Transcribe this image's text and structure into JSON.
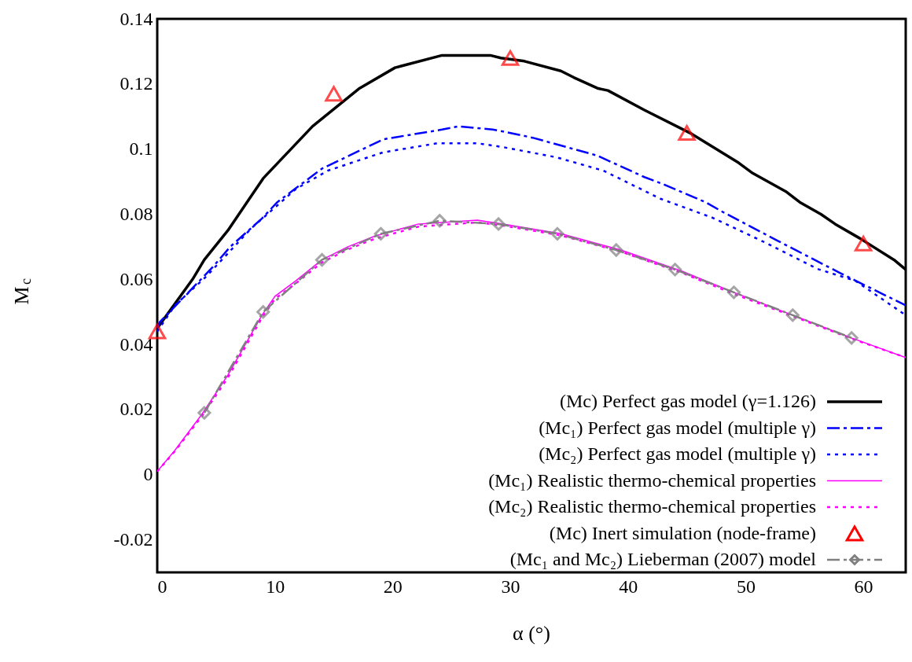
{
  "chart_data": {
    "type": "line",
    "xlabel": "α (°)",
    "ylabel": "M$_{c}$",
    "xlim": [
      0,
      63.6
    ],
    "ylim": [
      -0.03,
      0.14
    ],
    "xticks": [
      0,
      10,
      20,
      30,
      40,
      50,
      60
    ],
    "yticks": [
      -0.02,
      0,
      0.02,
      0.04,
      0.06,
      0.08,
      0.1,
      0.12,
      0.14
    ],
    "grid": false,
    "legend": "bottom right",
    "series": [
      {
        "name": "(Mc) Perfect gas model (γ=1.126)",
        "color": "#000000",
        "line_style": "solid",
        "marker": "none",
        "x": [
          0,
          3,
          4,
          6,
          9,
          13.2,
          17.2,
          20.2,
          24.2,
          28.3,
          29.2,
          31.2,
          34.3,
          35.4,
          37.4,
          38.3,
          41.4,
          45.4,
          49.4,
          50.6,
          53.4,
          54.6,
          56.4,
          57.6,
          59.7,
          62.6,
          63.6
        ],
        "values": [
          0.045,
          0.06,
          0.066,
          0.075,
          0.091,
          0.107,
          0.1187,
          0.125,
          0.1288,
          0.1288,
          0.128,
          0.127,
          0.124,
          0.122,
          0.1187,
          0.118,
          0.112,
          0.1047,
          0.0958,
          0.0926,
          0.087,
          0.0837,
          0.08,
          0.077,
          0.0726,
          0.066,
          0.063
        ]
      },
      {
        "name": "(Mc₁) Perfect gas model (multiple γ)",
        "color": "#0000ff",
        "line_style": "dashed",
        "marker": "none",
        "x": [
          0,
          0.2,
          4.7,
          6.2,
          8.9,
          10.2,
          14,
          19.2,
          24.2,
          25.6,
          28.5,
          29.4,
          31.9,
          37.4,
          41.4,
          42.8,
          46.6,
          47.9,
          52.8,
          58.1,
          63.6
        ],
        "values": [
          0.045,
          0.0468,
          0.0637,
          0.07,
          0.0787,
          0.0837,
          0.094,
          0.103,
          0.106,
          0.107,
          0.106,
          0.1054,
          0.1035,
          0.098,
          0.0914,
          0.0895,
          0.0837,
          0.081,
          0.0717,
          0.0618,
          0.052
        ]
      },
      {
        "name": "(Mc₂) Perfect gas model (multiple γ)",
        "color": "#0000ff",
        "line_style": "dotted",
        "marker": "none",
        "x": [
          0,
          1.5,
          4.2,
          8,
          11.8,
          14.5,
          19.2,
          23.8,
          27.2,
          29.4,
          33.9,
          37.9,
          42.8,
          47.2,
          51.6,
          56.1,
          59.3,
          63.6
        ],
        "values": [
          0.044,
          0.052,
          0.061,
          0.0757,
          0.0878,
          0.0934,
          0.099,
          0.1018,
          0.1018,
          0.1006,
          0.0975,
          0.0934,
          0.0847,
          0.0789,
          0.0714,
          0.0632,
          0.0596,
          0.049
        ]
      },
      {
        "name": "(Mc₁) Realistic thermo-chemical properties",
        "color": "#ff00ff",
        "line_style": "solid",
        "marker": "none",
        "x": [
          0,
          1.5,
          3.8,
          6,
          8.9,
          10,
          11.8,
          14,
          16.2,
          18.5,
          22.2,
          27.2,
          29.4,
          34.3,
          39.4,
          44.6,
          49,
          54,
          59,
          63.6
        ],
        "values": [
          0.001,
          0.0075,
          0.0186,
          0.0306,
          0.049,
          0.0548,
          0.0596,
          0.066,
          0.07,
          0.0733,
          0.077,
          0.0782,
          0.077,
          0.074,
          0.069,
          0.0625,
          0.056,
          0.049,
          0.042,
          0.036
        ]
      },
      {
        "name": "(Mc₂) Realistic thermo-chemical properties",
        "color": "#ff00ff",
        "line_style": "dotted",
        "marker": "none",
        "x": [
          0,
          1.5,
          3.8,
          6,
          8.9,
          10,
          11.8,
          14,
          16.2,
          18.5,
          22.2,
          27.2,
          29.4,
          34.3,
          39.4,
          44.6,
          49,
          54,
          59,
          63.6
        ],
        "values": [
          0.001,
          0.0072,
          0.018,
          0.0298,
          0.0482,
          0.054,
          0.0588,
          0.0652,
          0.0692,
          0.0725,
          0.0762,
          0.0775,
          0.0765,
          0.0735,
          0.0685,
          0.062,
          0.0555,
          0.0487,
          0.0418,
          0.036
        ]
      },
      {
        "name": "(Mc) Inert simulation (node-frame)",
        "type": "scatter",
        "color": "#ff0000",
        "marker": "triangle",
        "x": [
          0,
          15,
          30,
          45,
          60
        ],
        "values": [
          0.044,
          0.117,
          0.128,
          0.105,
          0.071
        ]
      },
      {
        "name": "(Mc₁ and Mc₂) Lieberman (2007) model",
        "color": "#808080",
        "line_style": "dashed",
        "marker": "diamond",
        "x": [
          4,
          9,
          14,
          19,
          24,
          29,
          34,
          39,
          44,
          49,
          54,
          59
        ],
        "values": [
          0.019,
          0.05,
          0.066,
          0.074,
          0.078,
          0.077,
          0.074,
          0.069,
          0.063,
          0.056,
          0.049,
          0.042
        ]
      }
    ]
  }
}
